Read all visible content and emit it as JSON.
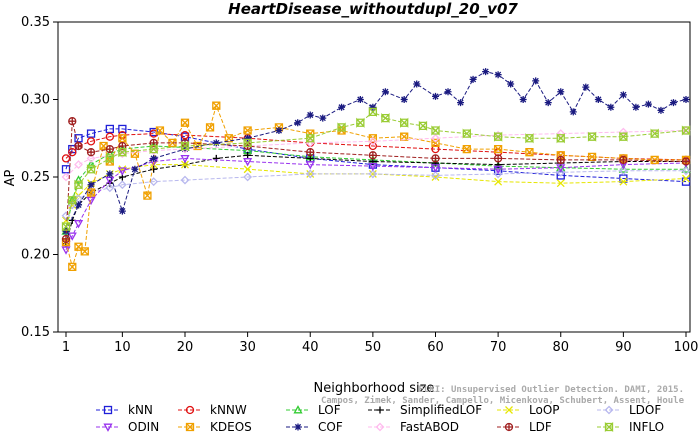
{
  "chart_data": {
    "type": "line",
    "title": "HeartDisease_withoutdupl_20_v07",
    "xlabel": "Neighborhood size",
    "ylabel": "AP",
    "xlim": [
      1,
      100
    ],
    "ylim": [
      0.15,
      0.35
    ],
    "xticks": [
      "1",
      "10",
      "20",
      "30",
      "40",
      "50",
      "60",
      "70",
      "80",
      "90",
      "100"
    ],
    "yticks": [
      "0.15",
      "0.20",
      "0.25",
      "0.30",
      "0.35"
    ],
    "grid": false,
    "legend_position": "bottom",
    "credit_line1": "ELKI: Unsupervised Outlier Detection. DAMI, 2015.",
    "credit_line2": "Campos, Zimek, Sander, Campello, Micenkova, Schubert, Assent, Houle",
    "series": [
      {
        "name": "kNN",
        "color": "#1f1fd8",
        "marker": "square",
        "points": [
          [
            1,
            0.255
          ],
          [
            2,
            0.268
          ],
          [
            3,
            0.275
          ],
          [
            5,
            0.278
          ],
          [
            8,
            0.281
          ],
          [
            10,
            0.281
          ],
          [
            15,
            0.279
          ],
          [
            20,
            0.276
          ],
          [
            30,
            0.268
          ],
          [
            40,
            0.262
          ],
          [
            50,
            0.258
          ],
          [
            60,
            0.256
          ],
          [
            70,
            0.254
          ],
          [
            80,
            0.251
          ],
          [
            90,
            0.249
          ],
          [
            100,
            0.247
          ]
        ]
      },
      {
        "name": "kNNW",
        "color": "#e01010",
        "marker": "circle",
        "points": [
          [
            1,
            0.262
          ],
          [
            2,
            0.266
          ],
          [
            3,
            0.27
          ],
          [
            5,
            0.273
          ],
          [
            8,
            0.276
          ],
          [
            10,
            0.277
          ],
          [
            15,
            0.278
          ],
          [
            20,
            0.277
          ],
          [
            30,
            0.275
          ],
          [
            40,
            0.272
          ],
          [
            50,
            0.27
          ],
          [
            60,
            0.268
          ],
          [
            70,
            0.266
          ],
          [
            80,
            0.264
          ],
          [
            90,
            0.262
          ],
          [
            100,
            0.261
          ]
        ]
      },
      {
        "name": "LOF",
        "color": "#33cc33",
        "marker": "triangle",
        "points": [
          [
            1,
            0.215
          ],
          [
            2,
            0.235
          ],
          [
            3,
            0.248
          ],
          [
            5,
            0.258
          ],
          [
            8,
            0.265
          ],
          [
            10,
            0.268
          ],
          [
            15,
            0.27
          ],
          [
            20,
            0.269
          ],
          [
            30,
            0.267
          ],
          [
            40,
            0.263
          ],
          [
            50,
            0.261
          ],
          [
            60,
            0.259
          ],
          [
            70,
            0.257
          ],
          [
            80,
            0.256
          ],
          [
            90,
            0.255
          ],
          [
            100,
            0.255
          ]
        ]
      },
      {
        "name": "SimplifiedLOF",
        "color": "#000000",
        "marker": "plus",
        "points": [
          [
            1,
            0.207
          ],
          [
            2,
            0.222
          ],
          [
            3,
            0.232
          ],
          [
            5,
            0.24
          ],
          [
            8,
            0.246
          ],
          [
            10,
            0.25
          ],
          [
            15,
            0.255
          ],
          [
            20,
            0.258
          ],
          [
            25,
            0.262
          ],
          [
            30,
            0.264
          ],
          [
            40,
            0.262
          ],
          [
            50,
            0.26
          ],
          [
            60,
            0.259
          ],
          [
            70,
            0.258
          ],
          [
            80,
            0.259
          ],
          [
            90,
            0.26
          ],
          [
            100,
            0.26
          ]
        ]
      },
      {
        "name": "LoOP",
        "color": "#e6e600",
        "marker": "x",
        "points": [
          [
            1,
            0.222
          ],
          [
            2,
            0.232
          ],
          [
            3,
            0.238
          ],
          [
            5,
            0.246
          ],
          [
            8,
            0.252
          ],
          [
            10,
            0.255
          ],
          [
            15,
            0.258
          ],
          [
            20,
            0.258
          ],
          [
            30,
            0.255
          ],
          [
            40,
            0.252
          ],
          [
            50,
            0.252
          ],
          [
            60,
            0.25
          ],
          [
            70,
            0.247
          ],
          [
            80,
            0.246
          ],
          [
            90,
            0.247
          ],
          [
            100,
            0.249
          ]
        ]
      },
      {
        "name": "LDOF",
        "color": "#b8b8ee",
        "marker": "diamond",
        "points": [
          [
            1,
            0.225
          ],
          [
            2,
            0.232
          ],
          [
            3,
            0.236
          ],
          [
            5,
            0.24
          ],
          [
            8,
            0.243
          ],
          [
            10,
            0.245
          ],
          [
            15,
            0.247
          ],
          [
            20,
            0.248
          ],
          [
            30,
            0.25
          ],
          [
            40,
            0.252
          ],
          [
            50,
            0.252
          ],
          [
            60,
            0.251
          ],
          [
            70,
            0.252
          ],
          [
            80,
            0.253
          ],
          [
            90,
            0.254
          ],
          [
            100,
            0.254
          ]
        ]
      },
      {
        "name": "ODIN",
        "color": "#9933ee",
        "marker": "triangle-down",
        "points": [
          [
            1,
            0.203
          ],
          [
            2,
            0.212
          ],
          [
            3,
            0.22
          ],
          [
            5,
            0.235
          ],
          [
            8,
            0.248
          ],
          [
            10,
            0.254
          ],
          [
            15,
            0.26
          ],
          [
            20,
            0.262
          ],
          [
            30,
            0.26
          ],
          [
            40,
            0.258
          ],
          [
            50,
            0.257
          ],
          [
            60,
            0.256
          ],
          [
            70,
            0.255
          ],
          [
            80,
            0.256
          ],
          [
            90,
            0.258
          ],
          [
            100,
            0.259
          ]
        ]
      },
      {
        "name": "KDEOS",
        "color": "#f0a000",
        "marker": "square-x",
        "points": [
          [
            1,
            0.208
          ],
          [
            2,
            0.192
          ],
          [
            3,
            0.205
          ],
          [
            4,
            0.202
          ],
          [
            5,
            0.24
          ],
          [
            7,
            0.27
          ],
          [
            8,
            0.26
          ],
          [
            10,
            0.275
          ],
          [
            12,
            0.265
          ],
          [
            14,
            0.238
          ],
          [
            16,
            0.28
          ],
          [
            18,
            0.272
          ],
          [
            20,
            0.285
          ],
          [
            22,
            0.27
          ],
          [
            24,
            0.282
          ],
          [
            25,
            0.296
          ],
          [
            27,
            0.275
          ],
          [
            30,
            0.28
          ],
          [
            35,
            0.282
          ],
          [
            40,
            0.278
          ],
          [
            45,
            0.28
          ],
          [
            50,
            0.275
          ],
          [
            55,
            0.276
          ],
          [
            60,
            0.272
          ],
          [
            65,
            0.268
          ],
          [
            70,
            0.268
          ],
          [
            75,
            0.266
          ],
          [
            80,
            0.264
          ],
          [
            85,
            0.263
          ],
          [
            90,
            0.262
          ],
          [
            95,
            0.261
          ],
          [
            100,
            0.261
          ]
        ]
      },
      {
        "name": "COF",
        "color": "#1a1a80",
        "marker": "star",
        "points": [
          [
            1,
            0.215
          ],
          [
            3,
            0.232
          ],
          [
            5,
            0.245
          ],
          [
            8,
            0.252
          ],
          [
            10,
            0.228
          ],
          [
            12,
            0.255
          ],
          [
            15,
            0.262
          ],
          [
            20,
            0.268
          ],
          [
            25,
            0.272
          ],
          [
            30,
            0.275
          ],
          [
            35,
            0.28
          ],
          [
            38,
            0.285
          ],
          [
            40,
            0.29
          ],
          [
            42,
            0.288
          ],
          [
            45,
            0.295
          ],
          [
            48,
            0.3
          ],
          [
            50,
            0.295
          ],
          [
            52,
            0.305
          ],
          [
            55,
            0.3
          ],
          [
            57,
            0.31
          ],
          [
            60,
            0.302
          ],
          [
            62,
            0.305
          ],
          [
            64,
            0.298
          ],
          [
            66,
            0.313
          ],
          [
            68,
            0.318
          ],
          [
            70,
            0.316
          ],
          [
            72,
            0.31
          ],
          [
            74,
            0.3
          ],
          [
            76,
            0.312
          ],
          [
            78,
            0.298
          ],
          [
            80,
            0.305
          ],
          [
            82,
            0.292
          ],
          [
            84,
            0.308
          ],
          [
            86,
            0.3
          ],
          [
            88,
            0.295
          ],
          [
            90,
            0.303
          ],
          [
            92,
            0.295
          ],
          [
            94,
            0.297
          ],
          [
            96,
            0.293
          ],
          [
            98,
            0.298
          ],
          [
            100,
            0.3
          ]
        ]
      },
      {
        "name": "FastABOD",
        "color": "#ffbbee",
        "marker": "diamond",
        "points": [
          [
            1,
            0.25
          ],
          [
            3,
            0.258
          ],
          [
            5,
            0.262
          ],
          [
            10,
            0.265
          ],
          [
            15,
            0.267
          ],
          [
            20,
            0.268
          ],
          [
            30,
            0.27
          ],
          [
            40,
            0.272
          ],
          [
            50,
            0.273
          ],
          [
            60,
            0.275
          ],
          [
            70,
            0.277
          ],
          [
            80,
            0.278
          ],
          [
            90,
            0.279
          ],
          [
            100,
            0.28
          ]
        ]
      },
      {
        "name": "LDF",
        "color": "#a02020",
        "marker": "circle-plus",
        "points": [
          [
            1,
            0.21
          ],
          [
            2,
            0.286
          ],
          [
            3,
            0.27
          ],
          [
            5,
            0.266
          ],
          [
            8,
            0.268
          ],
          [
            10,
            0.27
          ],
          [
            15,
            0.272
          ],
          [
            20,
            0.272
          ],
          [
            30,
            0.27
          ],
          [
            40,
            0.266
          ],
          [
            50,
            0.264
          ],
          [
            60,
            0.262
          ],
          [
            70,
            0.262
          ],
          [
            80,
            0.261
          ],
          [
            90,
            0.261
          ],
          [
            100,
            0.26
          ]
        ]
      },
      {
        "name": "INFLO",
        "color": "#99cc33",
        "marker": "hourglass",
        "points": [
          [
            1,
            0.218
          ],
          [
            2,
            0.235
          ],
          [
            3,
            0.245
          ],
          [
            5,
            0.255
          ],
          [
            8,
            0.262
          ],
          [
            10,
            0.266
          ],
          [
            15,
            0.268
          ],
          [
            20,
            0.27
          ],
          [
            30,
            0.272
          ],
          [
            40,
            0.275
          ],
          [
            45,
            0.282
          ],
          [
            48,
            0.285
          ],
          [
            50,
            0.292
          ],
          [
            52,
            0.288
          ],
          [
            55,
            0.285
          ],
          [
            58,
            0.283
          ],
          [
            60,
            0.28
          ],
          [
            65,
            0.278
          ],
          [
            70,
            0.276
          ],
          [
            75,
            0.275
          ],
          [
            80,
            0.275
          ],
          [
            85,
            0.276
          ],
          [
            90,
            0.276
          ],
          [
            95,
            0.278
          ],
          [
            100,
            0.28
          ]
        ]
      }
    ]
  }
}
